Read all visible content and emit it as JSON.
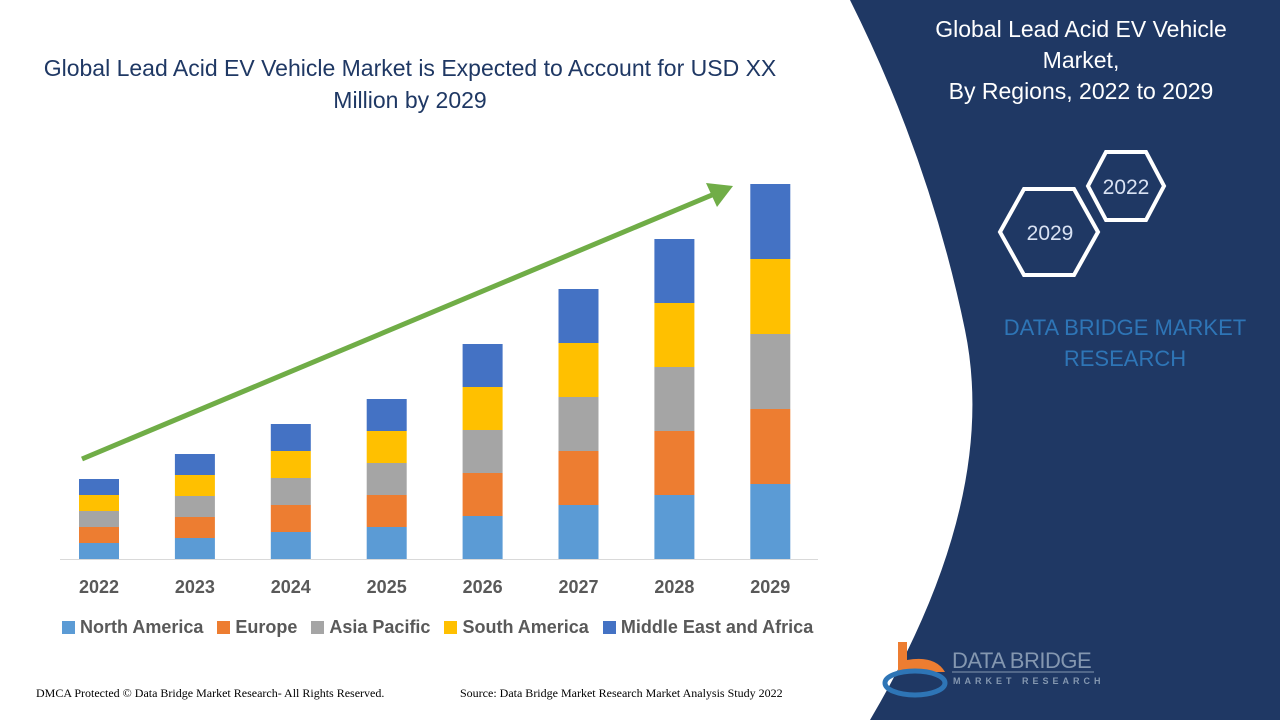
{
  "title": "Global Lead Acid EV Vehicle Market is Expected to Account for USD XX Million by 2029",
  "side_panel": {
    "title_line1": "Global Lead Acid EV Vehicle",
    "title_line2": "Market,",
    "title_line3": "By Regions, 2022 to 2029",
    "hex_year_back": "2022",
    "hex_year_front": "2029",
    "brand_line1": "DATA BRIDGE MARKET",
    "brand_line2": "RESEARCH",
    "logo_text": "DATA BRIDGE",
    "logo_subtext": "MARKET RESEARCH",
    "panel_color": "#1f3864"
  },
  "footer": {
    "dmca": "DMCA Protected © Data Bridge Market Research- All Rights Reserved.",
    "source": "Source: Data Bridge Market Research Market Analysis Study 2022"
  },
  "chart_data": {
    "type": "bar",
    "stacked": true,
    "categories": [
      "2022",
      "2023",
      "2024",
      "2025",
      "2026",
      "2027",
      "2028",
      "2029"
    ],
    "series": [
      {
        "name": "North America",
        "color": "#5b9bd5",
        "values": [
          16,
          21,
          27,
          32,
          43,
          54,
          64,
          75
        ]
      },
      {
        "name": "Europe",
        "color": "#ed7d31",
        "values": [
          16,
          21,
          27,
          32,
          43,
          54,
          64,
          75
        ]
      },
      {
        "name": "Asia Pacific",
        "color": "#a5a5a5",
        "values": [
          16,
          21,
          27,
          32,
          43,
          54,
          64,
          75
        ]
      },
      {
        "name": "South America",
        "color": "#ffc000",
        "values": [
          16,
          21,
          27,
          32,
          43,
          54,
          64,
          75
        ]
      },
      {
        "name": "Middle East and Africa",
        "color": "#4472c4",
        "values": [
          16,
          21,
          27,
          32,
          43,
          54,
          64,
          75
        ]
      }
    ],
    "trend_arrow_color": "#70ad47",
    "grid": false,
    "legend_position": "bottom",
    "ylim": [
      0,
      375
    ]
  }
}
